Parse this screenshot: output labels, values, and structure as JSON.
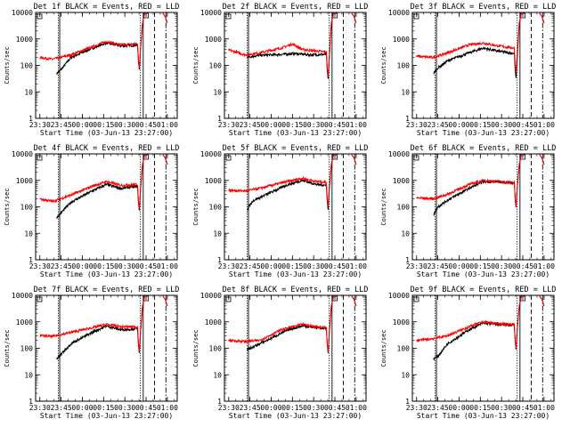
{
  "chart_data": {
    "type": "line",
    "yscale": "log",
    "ylim": [
      1,
      10000
    ],
    "ylabel": "Counts/sec",
    "xlabel": "Start Time (03-Jun-13 23:27:00)",
    "x_ticks": [
      "23:30",
      "23:45",
      "00:00",
      "00:15",
      "00:30",
      "00:45",
      "01:00"
    ],
    "y_ticks": [
      "1",
      "10",
      "100",
      "1000",
      "10000"
    ],
    "x_minutes": [
      3,
      18,
      33,
      48,
      63,
      78,
      93
    ],
    "x_range_minutes": [
      0,
      100
    ],
    "vlines_minutes": {
      "solid": [
        17,
        76
      ],
      "dotted": [
        16,
        74
      ],
      "dashed": [
        84
      ],
      "dashdot": [
        92
      ]
    },
    "panels": [
      {
        "title": "Det 1f BLACK = Events, RED = LLD",
        "black": [
          [
            15,
            50
          ],
          [
            18,
            70
          ],
          [
            25,
            200
          ],
          [
            40,
            450
          ],
          [
            50,
            700
          ],
          [
            60,
            550
          ],
          [
            72,
            580
          ]
        ],
        "red": [
          [
            3,
            200
          ],
          [
            12,
            170
          ],
          [
            25,
            250
          ],
          [
            40,
            500
          ],
          [
            50,
            800
          ],
          [
            60,
            600
          ],
          [
            72,
            650
          ]
        ]
      },
      {
        "title": "Det 2f BLACK = Events, RED = LLD",
        "black": [
          [
            16,
            210
          ],
          [
            25,
            240
          ],
          [
            40,
            260
          ],
          [
            50,
            280
          ],
          [
            60,
            250
          ],
          [
            72,
            260
          ]
        ],
        "red": [
          [
            3,
            380
          ],
          [
            15,
            250
          ],
          [
            25,
            300
          ],
          [
            40,
            450
          ],
          [
            48,
            650
          ],
          [
            55,
            400
          ],
          [
            72,
            320
          ]
        ]
      },
      {
        "title": "Det 3f BLACK = Events, RED = LLD",
        "black": [
          [
            15,
            50
          ],
          [
            18,
            80
          ],
          [
            25,
            150
          ],
          [
            40,
            300
          ],
          [
            50,
            450
          ],
          [
            60,
            350
          ],
          [
            72,
            280
          ]
        ],
        "red": [
          [
            3,
            220
          ],
          [
            15,
            200
          ],
          [
            25,
            300
          ],
          [
            40,
            600
          ],
          [
            50,
            700
          ],
          [
            60,
            550
          ],
          [
            72,
            450
          ]
        ]
      },
      {
        "title": "Det 4f BLACK = Events, RED = LLD",
        "black": [
          [
            15,
            40
          ],
          [
            18,
            60
          ],
          [
            25,
            150
          ],
          [
            40,
            400
          ],
          [
            50,
            700
          ],
          [
            60,
            500
          ],
          [
            72,
            600
          ]
        ],
        "red": [
          [
            3,
            200
          ],
          [
            12,
            160
          ],
          [
            25,
            280
          ],
          [
            40,
            600
          ],
          [
            50,
            900
          ],
          [
            60,
            650
          ],
          [
            72,
            700
          ]
        ]
      },
      {
        "title": "Det 5f BLACK = Events, RED = LLD",
        "black": [
          [
            16,
            80
          ],
          [
            20,
            170
          ],
          [
            30,
            300
          ],
          [
            45,
            700
          ],
          [
            55,
            1000
          ],
          [
            65,
            700
          ],
          [
            72,
            650
          ]
        ],
        "red": [
          [
            3,
            420
          ],
          [
            15,
            400
          ],
          [
            25,
            500
          ],
          [
            40,
            800
          ],
          [
            55,
            1200
          ],
          [
            65,
            900
          ],
          [
            72,
            850
          ]
        ]
      },
      {
        "title": "Det 6f BLACK = Events, RED = LLD",
        "black": [
          [
            15,
            50
          ],
          [
            18,
            100
          ],
          [
            25,
            180
          ],
          [
            40,
            500
          ],
          [
            50,
            900
          ],
          [
            60,
            900
          ],
          [
            72,
            800
          ]
        ],
        "red": [
          [
            3,
            220
          ],
          [
            15,
            200
          ],
          [
            25,
            300
          ],
          [
            40,
            700
          ],
          [
            50,
            1000
          ],
          [
            60,
            900
          ],
          [
            72,
            800
          ]
        ]
      },
      {
        "title": "Det 7f BLACK = Events, RED = LLD",
        "black": [
          [
            15,
            40
          ],
          [
            18,
            60
          ],
          [
            25,
            150
          ],
          [
            40,
            400
          ],
          [
            50,
            700
          ],
          [
            60,
            500
          ],
          [
            72,
            550
          ]
        ],
        "red": [
          [
            3,
            300
          ],
          [
            12,
            280
          ],
          [
            25,
            400
          ],
          [
            40,
            600
          ],
          [
            50,
            800
          ],
          [
            60,
            650
          ],
          [
            72,
            650
          ]
        ]
      },
      {
        "title": "Det 8f BLACK = Events, RED = LLD",
        "black": [
          [
            16,
            90
          ],
          [
            20,
            110
          ],
          [
            30,
            200
          ],
          [
            45,
            500
          ],
          [
            55,
            700
          ],
          [
            65,
            600
          ],
          [
            72,
            550
          ]
        ],
        "red": [
          [
            3,
            200
          ],
          [
            15,
            180
          ],
          [
            25,
            200
          ],
          [
            40,
            500
          ],
          [
            55,
            800
          ],
          [
            65,
            650
          ],
          [
            72,
            600
          ]
        ]
      },
      {
        "title": "Det 9f BLACK = Events, RED = LLD",
        "black": [
          [
            15,
            40
          ],
          [
            18,
            50
          ],
          [
            25,
            150
          ],
          [
            40,
            500
          ],
          [
            50,
            900
          ],
          [
            60,
            800
          ],
          [
            72,
            750
          ]
        ],
        "red": [
          [
            3,
            200
          ],
          [
            12,
            220
          ],
          [
            25,
            300
          ],
          [
            40,
            650
          ],
          [
            50,
            1000
          ],
          [
            60,
            850
          ],
          [
            72,
            800
          ]
        ]
      }
    ]
  }
}
